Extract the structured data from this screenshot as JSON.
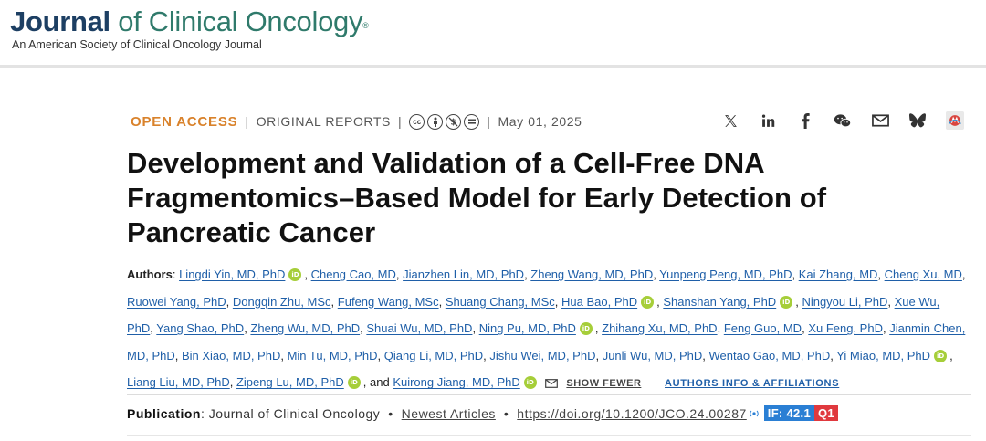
{
  "journal": {
    "name_part1": "Journal",
    "name_part2": " of Clinical Oncology",
    "registered": "®",
    "subtitle": "An American Society of Clinical Oncology Journal"
  },
  "meta": {
    "access": "OPEN ACCESS",
    "separator": "|",
    "article_type": "ORIGINAL REPORTS",
    "license_icons": [
      "cc-icon",
      "by-icon",
      "nc-icon",
      "nd-icon"
    ],
    "date": "May 01, 2025"
  },
  "share": [
    "x-icon",
    "linkedin-icon",
    "facebook-icon",
    "wechat-icon",
    "email-icon",
    "bluesky-icon",
    "mendeley-icon"
  ],
  "article": {
    "title": "Development and Validation of a Cell-Free DNA Fragmentomics–Based Model for Early Detection of Pancreatic Cancer"
  },
  "authors": {
    "label": "Authors",
    "list": [
      "Lingdi Yin, MD, PhD",
      "Cheng Cao, MD",
      "Jianzhen Lin, MD, PhD",
      "Zheng Wang, MD, PhD",
      "Yunpeng Peng, MD, PhD",
      "Kai Zhang, MD",
      "Cheng Xu, MD",
      "Ruowei Yang, PhD",
      "Dongqin Zhu, MSc",
      "Fufeng Wang, MSc",
      "Shuang Chang, MSc",
      "Hua Bao, PhD",
      "Shanshan Yang, PhD",
      "Ningyou Li, PhD",
      "Xue Wu, PhD",
      "Yang Shao, PhD",
      "Zheng Wu, MD, PhD",
      "Shuai Wu, MD, PhD",
      "Ning Pu, MD, PhD",
      "Zhihang Xu, MD, PhD",
      "Feng Guo, MD",
      "Xu Feng, PhD",
      "Jianmin Chen, MD, PhD",
      "Bin Xiao, MD, PhD",
      "Min Tu, MD, PhD",
      "Qiang Li, MD, PhD",
      "Jishu Wei, MD, PhD",
      "Junli Wu, MD, PhD",
      "Wentao Gao, MD, PhD",
      "Yi Miao, MD, PhD",
      "Liang Liu, MD, PhD",
      "Zipeng Lu, MD, PhD",
      "Kuirong Jiang, MD, PhD"
    ],
    "orcid_label": "iD",
    "and_word": "and",
    "show_fewer": "SHOW FEWER",
    "affiliations": "AUTHORS INFO & AFFILIATIONS"
  },
  "publication": {
    "label": "Publication",
    "journal": "Journal of Clinical Oncology",
    "section": "Newest Articles",
    "doi": "https://doi.org/10.1200/JCO.24.00287",
    "impact_factor": "IF: 42.1",
    "quartile": "Q1"
  }
}
